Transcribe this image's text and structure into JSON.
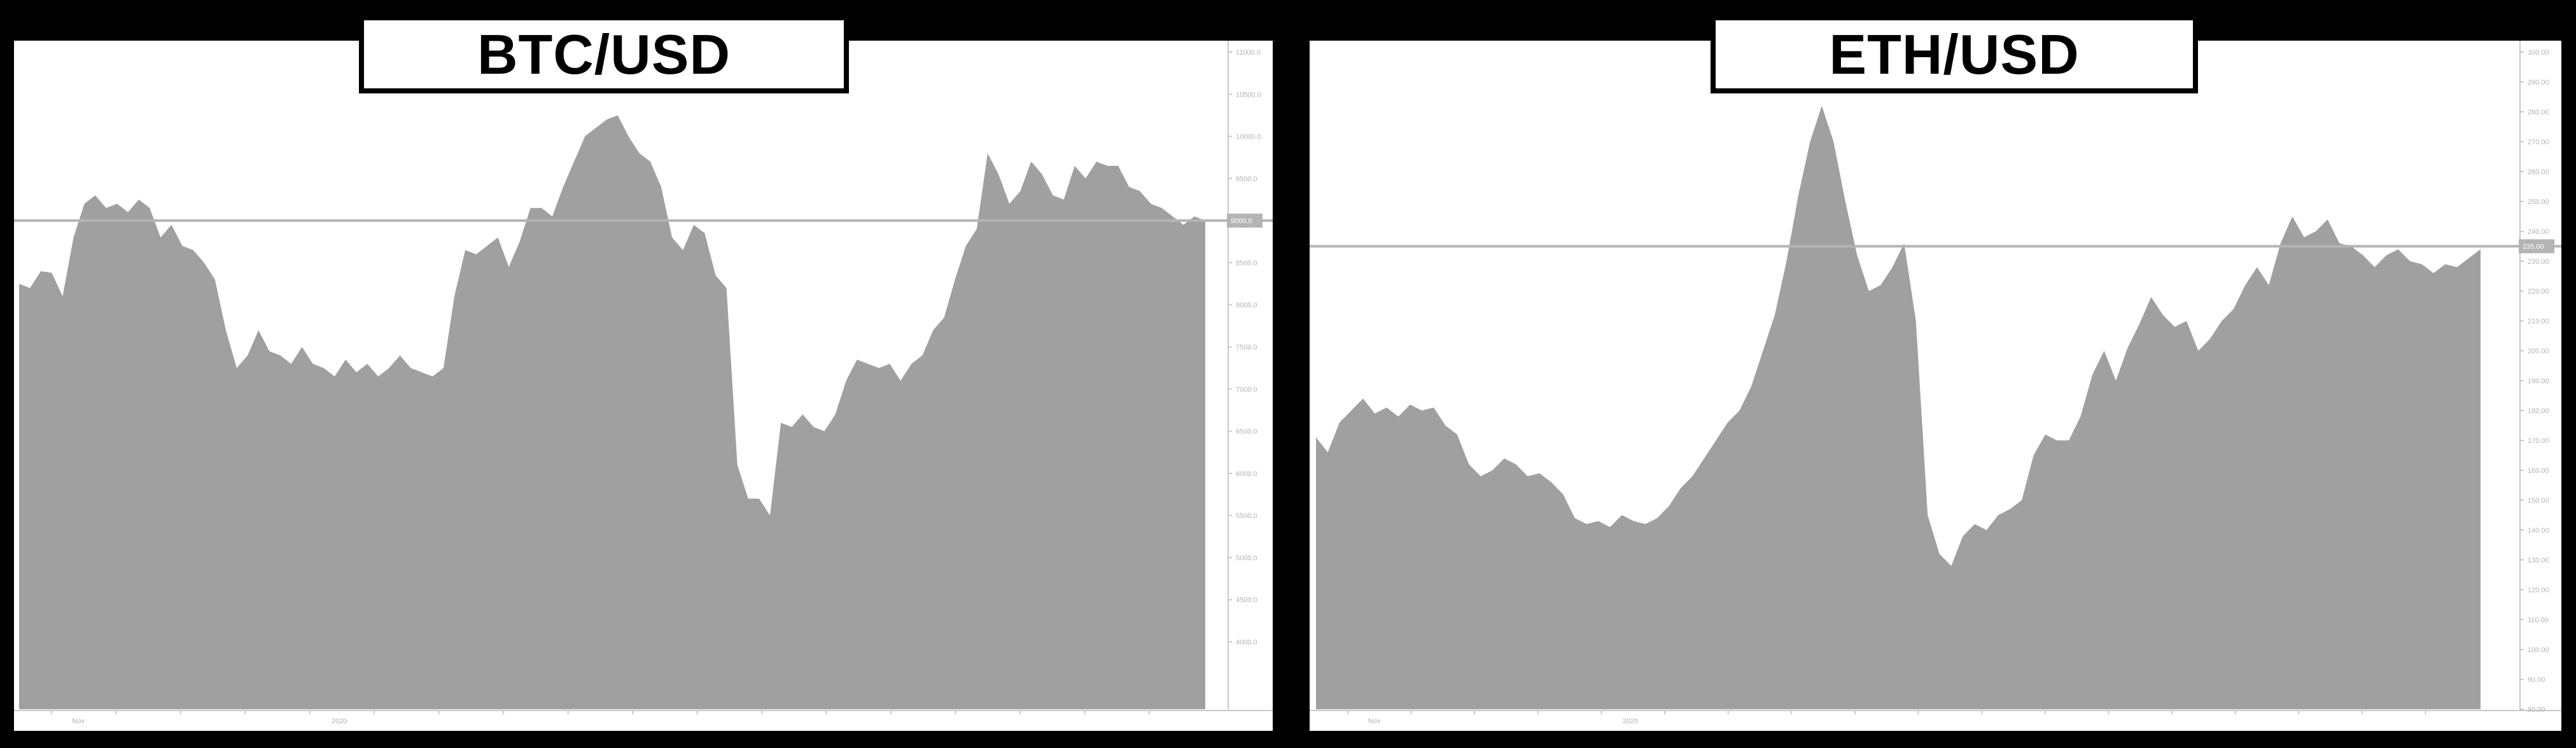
{
  "colors": {
    "background": "#000000",
    "panel": "#ffffff",
    "area_fill": "#a0a0a0",
    "reference_line": "#b4b4b4",
    "axis": "#c8c8c8",
    "tick_label": "#b3b3b3"
  },
  "chart_data": [
    {
      "type": "area",
      "title": "BTC/USD",
      "xlabel": "",
      "ylabel": "",
      "grid": false,
      "legend": "none",
      "x_tick_labels": [
        "Nov",
        "2020"
      ],
      "y_tick_labels": [
        "11000.0",
        "10500.0",
        "10000.0",
        "9500.0",
        "9000.0",
        "8500.0",
        "8000.0",
        "7500.0",
        "7000.0",
        "6500.0",
        "6000.0",
        "5500.0",
        "5000.0",
        "4500.0",
        "4000.0"
      ],
      "ylim": [
        3200,
        11000
      ],
      "reference_line": 9000,
      "last_value_label": "9000.0",
      "series": [
        {
          "values": [
            8250,
            8200,
            8400,
            8380,
            8100,
            8800,
            9200,
            9300,
            9150,
            9200,
            9100,
            9250,
            9150,
            8800,
            8950,
            8700,
            8650,
            8500,
            8300,
            7700,
            7250,
            7400,
            7700,
            7450,
            7400,
            7300,
            7500,
            7300,
            7250,
            7150,
            7350,
            7200,
            7300,
            7150,
            7250,
            7400,
            7250,
            7200,
            7150,
            7250,
            8100,
            8650,
            8600,
            8700,
            8800,
            8450,
            8750,
            9150,
            9150,
            9050,
            9400,
            9700,
            10000,
            10100,
            10200,
            10250,
            10000,
            9800,
            9700,
            9400,
            8800,
            8650,
            8950,
            8850,
            8350,
            8200,
            6100,
            5700,
            5700,
            5500,
            6600,
            6550,
            6700,
            6550,
            6500,
            6700,
            7100,
            7350,
            7300,
            7250,
            7300,
            7100,
            7300,
            7400,
            7700,
            7850,
            8300,
            8700,
            8900,
            9800,
            9550,
            9200,
            9350,
            9700,
            9550,
            9300,
            9250,
            9650,
            9500,
            9700,
            9650,
            9650,
            9400,
            9350,
            9200,
            9150,
            9050,
            8950,
            9050,
            9000
          ]
        }
      ]
    },
    {
      "type": "area",
      "title": "ETH/USD",
      "xlabel": "",
      "ylabel": "",
      "grid": false,
      "legend": "none",
      "x_tick_labels": [
        "Nov",
        "2020"
      ],
      "y_tick_labels": [
        "300.00",
        "290.00",
        "280.00",
        "270.00",
        "260.00",
        "250.00",
        "240.00",
        "230.00",
        "220.00",
        "210.00",
        "200.00",
        "190.00",
        "180.00",
        "170.00",
        "160.00",
        "150.00",
        "140.00",
        "130.00",
        "120.00",
        "110.00",
        "100.00",
        "90.00",
        "80.00"
      ],
      "ylim": [
        80,
        300
      ],
      "reference_line": 235,
      "last_value_label": "235.00",
      "series": [
        {
          "values": [
            171,
            166,
            176,
            180,
            184,
            179,
            181,
            178,
            182,
            180,
            181,
            175,
            172,
            162,
            158,
            160,
            164,
            162,
            158,
            159,
            156,
            152,
            144,
            142,
            143,
            141,
            145,
            143,
            142,
            144,
            148,
            154,
            158,
            164,
            170,
            176,
            180,
            188,
            200,
            212,
            230,
            252,
            270,
            282,
            270,
            250,
            232,
            220,
            222,
            228,
            236,
            210,
            145,
            132,
            128,
            138,
            142,
            140,
            145,
            147,
            150,
            165,
            172,
            170,
            170,
            178,
            192,
            200,
            190,
            201,
            209,
            218,
            212,
            208,
            210,
            200,
            204,
            210,
            214,
            222,
            228,
            222,
            236,
            245,
            238,
            240,
            244,
            236,
            235,
            232,
            228,
            232,
            234,
            230,
            229,
            226,
            229,
            228,
            231,
            234
          ]
        }
      ]
    }
  ]
}
